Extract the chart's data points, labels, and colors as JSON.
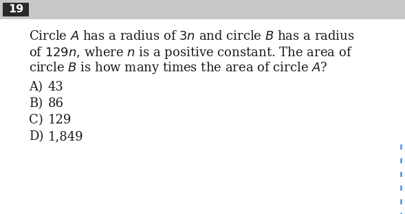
{
  "question_number": "19",
  "header_bg": "#c8c8c8",
  "header_text_color": "#ffffff",
  "header_box_bg": "#2a2a2a",
  "bg_color": "#ffffff",
  "body_text_color": "#1a1a1a",
  "line1": "Circle $A$ has a radius of $3n$ and circle $B$ has a radius",
  "line2": "of $129n$, where $n$ is a positive constant. The area of",
  "line3": "circle $B$ is how many times the area of circle $A$?",
  "choices": [
    [
      "A)",
      "43"
    ],
    [
      "B)",
      "86"
    ],
    [
      "C)",
      "129"
    ],
    [
      "D)",
      "1,849"
    ]
  ],
  "dashed_line_color": "#4a90d9",
  "font_size_body": 13.0,
  "font_size_choices": 13.0,
  "font_size_header": 11.5
}
